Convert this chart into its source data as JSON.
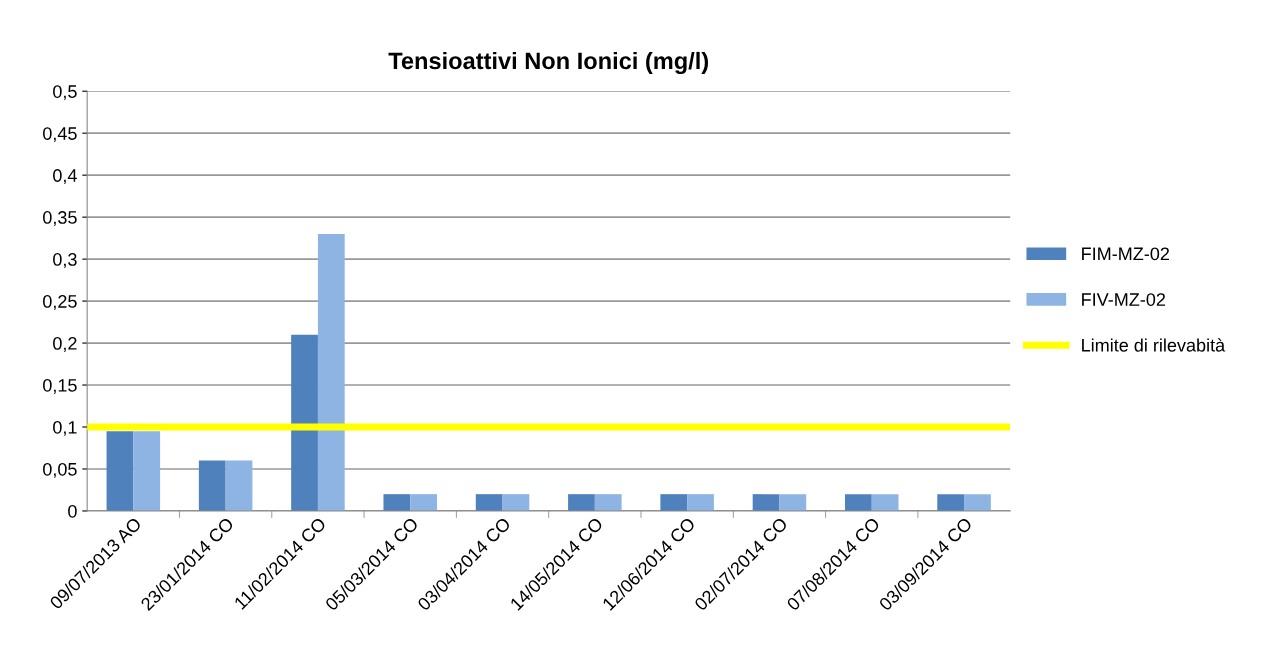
{
  "chart_data": {
    "type": "bar",
    "title": "Tensioattivi Non Ionici (mg/l)",
    "categories": [
      "09/07/2013 AO",
      "23/01/2014 CO",
      "11/02/2014 CO",
      "05/03/2014 CO",
      "03/04/2014 CO",
      "14/05/2014 CO",
      "12/06/2014 CO",
      "02/07/2014 CO",
      "07/08/2014 CO",
      "03/09/2014 CO"
    ],
    "series": [
      {
        "name": "FIM-MZ-02",
        "color": "#4f81bd",
        "values": [
          0.095,
          0.06,
          0.21,
          0.02,
          0.02,
          0.02,
          0.02,
          0.02,
          0.02,
          0.02
        ]
      },
      {
        "name": "FIV-MZ-02",
        "color": "#8eb4e3",
        "values": [
          0.095,
          0.06,
          0.33,
          0.02,
          0.02,
          0.02,
          0.02,
          0.02,
          0.02,
          0.02
        ]
      }
    ],
    "ref_lines": [
      {
        "axis": "y",
        "value": 0.1,
        "label": "Limite di rilevabità",
        "color": "#ffff00",
        "line_style": "solid"
      }
    ],
    "ylim": [
      0,
      0.5
    ],
    "yticks": [
      0,
      {
        "value": 0.05,
        "label": "0,05"
      },
      {
        "value": 0.1,
        "label": "0,1"
      },
      {
        "value": 0.15,
        "label": "0,15"
      },
      {
        "value": 0.2,
        "label": "0,2"
      },
      {
        "value": 0.25,
        "label": "0,25"
      },
      {
        "value": 0.3,
        "label": "0,3"
      },
      {
        "value": 0.35,
        "label": "0,35"
      },
      {
        "value": 0.4,
        "label": "0,4"
      },
      {
        "value": 0.45,
        "label": "0,45"
      },
      {
        "value": 0.5,
        "label": "0,5"
      }
    ],
    "grid": "y",
    "legend": "right"
  }
}
